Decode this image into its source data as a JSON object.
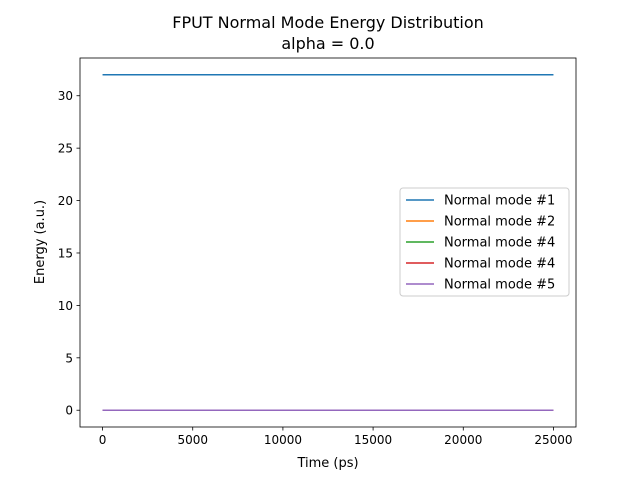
{
  "chart_data": {
    "type": "line",
    "title": "FPUT Normal Mode Energy Distribution",
    "subtitle": "alpha = 0.0",
    "xlabel": "Time (ps)",
    "ylabel": "Energy (a.u.)",
    "xlim": [
      -1250,
      26250
    ],
    "ylim": [
      -1.6,
      33.6
    ],
    "xticks": [
      0,
      5000,
      10000,
      15000,
      20000,
      25000
    ],
    "yticks": [
      0,
      5,
      10,
      15,
      20,
      25,
      30
    ],
    "grid": false,
    "legend_position": "center-right",
    "series": [
      {
        "name": "Normal mode #1",
        "color": "#1f77b4",
        "x": [
          0,
          25000
        ],
        "y": [
          32,
          32
        ]
      },
      {
        "name": "Normal mode #2",
        "color": "#ff7f0e",
        "x": [
          0,
          25000
        ],
        "y": [
          0,
          0
        ]
      },
      {
        "name": "Normal mode #4",
        "color": "#2ca02c",
        "x": [
          0,
          25000
        ],
        "y": [
          0,
          0
        ]
      },
      {
        "name": "Normal mode #4",
        "color": "#d62728",
        "x": [
          0,
          25000
        ],
        "y": [
          0,
          0
        ]
      },
      {
        "name": "Normal mode #5",
        "color": "#9467bd",
        "x": [
          0,
          25000
        ],
        "y": [
          0,
          0
        ]
      }
    ]
  }
}
